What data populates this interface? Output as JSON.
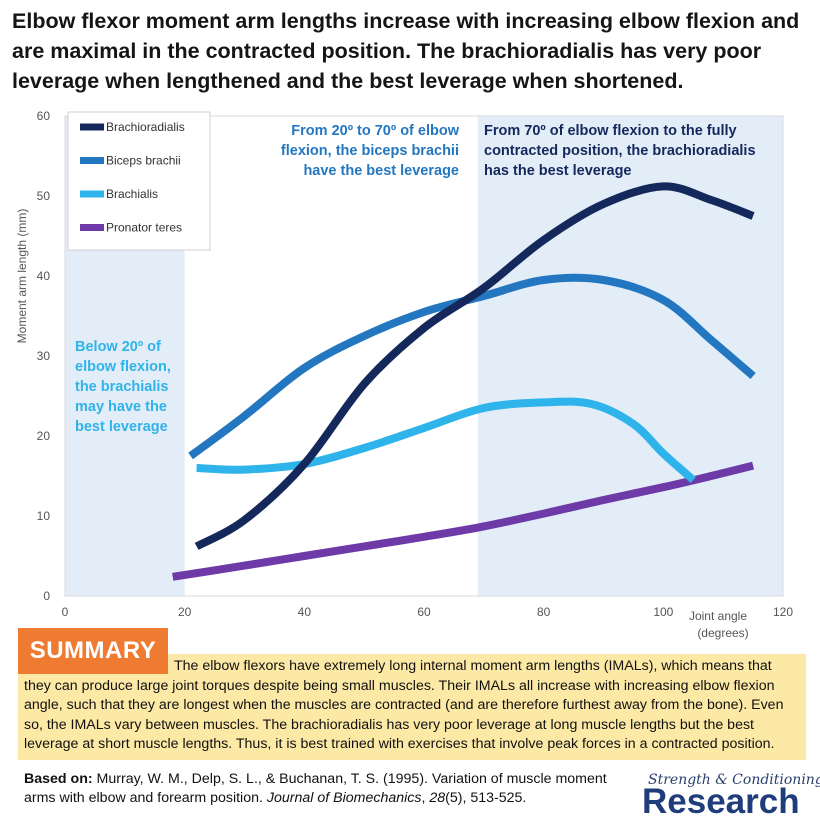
{
  "title": "Elbow flexor moment arm lengths increase with increasing elbow flexion and are maximal in the contracted position. The brachioradialis has very poor leverage when lengthened and the best leverage when shortened.",
  "chart_data": {
    "type": "line",
    "ylabel": "Moment arm length (mm)",
    "xlabel_line1": "Joint angle",
    "xlabel_line2": "(degrees)",
    "xlim": [
      0,
      120
    ],
    "ylim": [
      0,
      60
    ],
    "x_ticks": [
      "0",
      "20",
      "40",
      "60",
      "80",
      "100",
      "120"
    ],
    "y_ticks": [
      "0",
      "10",
      "20",
      "30",
      "40",
      "50",
      "60"
    ],
    "grid": false,
    "legend_position": "top-left",
    "series": [
      {
        "name": "Brachioradialis",
        "color": "#14285c",
        "points": [
          [
            22,
            6.2
          ],
          [
            30,
            9.5
          ],
          [
            40,
            16.5
          ],
          [
            50,
            26.5
          ],
          [
            60,
            33.5
          ],
          [
            70,
            38.5
          ],
          [
            80,
            44.5
          ],
          [
            90,
            49
          ],
          [
            100,
            51.2
          ],
          [
            108,
            49.5
          ],
          [
            115,
            47.5
          ]
        ]
      },
      {
        "name": "Biceps brachii",
        "color": "#2377c1",
        "points": [
          [
            21,
            17.5
          ],
          [
            30,
            22.5
          ],
          [
            40,
            28.5
          ],
          [
            50,
            32.5
          ],
          [
            60,
            35.5
          ],
          [
            70,
            37.5
          ],
          [
            80,
            39.5
          ],
          [
            90,
            39.5
          ],
          [
            100,
            37
          ],
          [
            108,
            32
          ],
          [
            115,
            27.5
          ]
        ]
      },
      {
        "name": "Brachialis",
        "color": "#2eb3ea",
        "points": [
          [
            22,
            16
          ],
          [
            30,
            15.8
          ],
          [
            40,
            16.5
          ],
          [
            50,
            18.5
          ],
          [
            60,
            21
          ],
          [
            70,
            23.5
          ],
          [
            80,
            24.2
          ],
          [
            88,
            24
          ],
          [
            95,
            21.5
          ],
          [
            100,
            17.8
          ],
          [
            105,
            14.5
          ]
        ]
      },
      {
        "name": "Pronator teres",
        "color": "#6d3aa8",
        "points": [
          [
            18,
            2.4
          ],
          [
            30,
            3.8
          ],
          [
            40,
            5
          ],
          [
            50,
            6.2
          ],
          [
            60,
            7.4
          ],
          [
            70,
            8.7
          ],
          [
            80,
            10.3
          ],
          [
            90,
            12
          ],
          [
            100,
            13.6
          ],
          [
            108,
            15
          ],
          [
            115,
            16.3
          ]
        ]
      }
    ],
    "shaded_regions": [
      {
        "x_from": 0,
        "x_to": 20,
        "color": "#e3edf8"
      },
      {
        "x_from": 69,
        "x_to": 120,
        "color": "#e3edf8"
      }
    ],
    "annotations": [
      {
        "lines": [
          "Below 20º of",
          "elbow flexion,",
          "the brachialis",
          "may have the",
          "best leverage"
        ],
        "color": "#2eb3ea"
      },
      {
        "lines": [
          "From 20º to 70º of elbow",
          "flexion, the biceps brachii",
          "have the best leverage"
        ],
        "color": "#2377c1"
      },
      {
        "lines": [
          "From 70º of elbow flexion to the fully",
          "contracted position, the brachioradialis",
          "has the best leverage"
        ],
        "color": "#14285c"
      }
    ]
  },
  "summary": {
    "badge": "SUMMARY",
    "text": "The elbow flexors have extremely long internal moment arm lengths (IMALs), which means that they can produce large joint torques despite being small muscles. Their IMALs all increase with increasing elbow flexion angle, such that they are longest when the muscles are contracted (and are therefore furthest away from the bone). Even so, the IMALs vary between muscles. The brachioradialis has very poor leverage at long muscle lengths but the best leverage at short muscle lengths. Thus, it is best trained with exercises that involve peak forces in a contracted position."
  },
  "citation": {
    "label": "Based on:",
    "authors": "Murray, W. M., Delp, S. L., & Buchanan, T. S. (1995). Variation of muscle moment arms with elbow and forearm position.",
    "journal": "Journal of Biomechanics",
    "volume": "28",
    "rest": "(5), 513-525."
  },
  "logo": {
    "top": "Strength & Conditioning",
    "bottom": "Research"
  }
}
